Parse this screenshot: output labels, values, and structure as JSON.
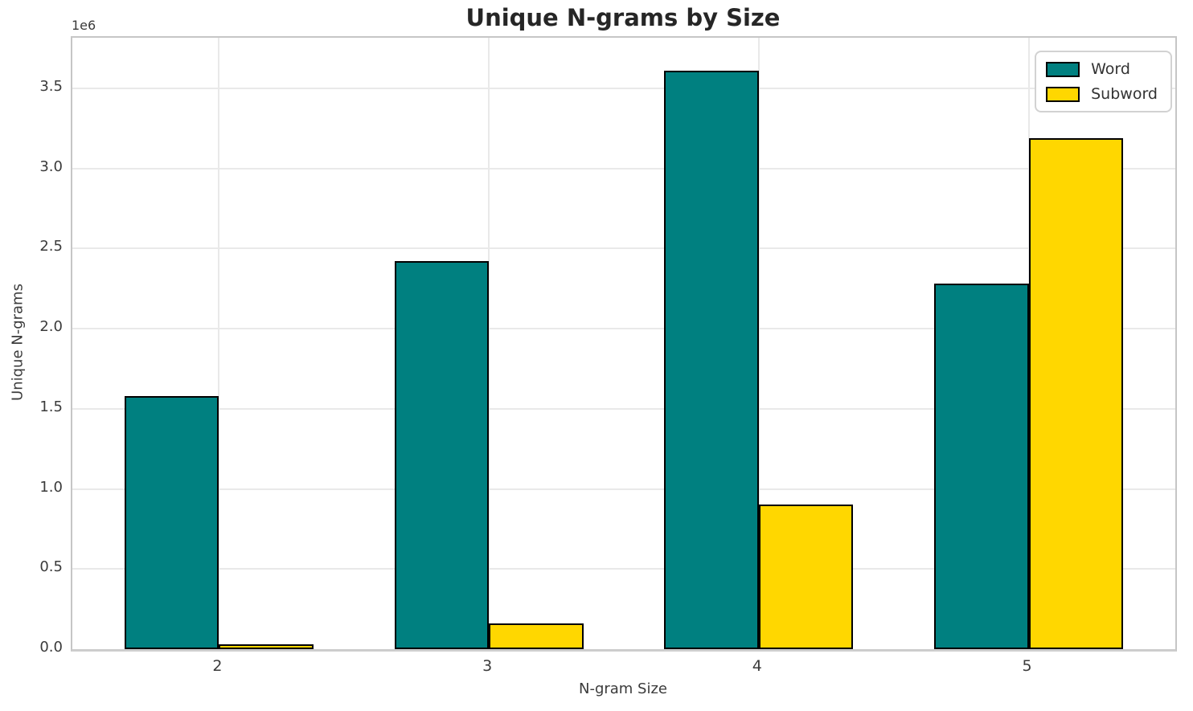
{
  "chart_data": {
    "type": "bar",
    "title": "Unique N-grams by Size",
    "xlabel": "N-gram Size",
    "ylabel": "Unique N-grams",
    "y_offset_text": "1e6",
    "categories": [
      "2",
      "3",
      "4",
      "5"
    ],
    "series": [
      {
        "name": "Word",
        "color": "#008080",
        "values": [
          1580000,
          2420000,
          3610000,
          2280000
        ]
      },
      {
        "name": "Subword",
        "color": "#FFD700",
        "values": [
          30000,
          160000,
          900000,
          3190000
        ]
      }
    ],
    "ylim": [
      0,
      3815000
    ],
    "yticks": [
      0,
      500000,
      1000000,
      1500000,
      2000000,
      2500000,
      3000000,
      3500000
    ],
    "ytick_labels": [
      "0.0",
      "0.5",
      "1.0",
      "1.5",
      "2.0",
      "2.5",
      "3.0",
      "3.5"
    ],
    "grid": true,
    "legend_position": "upper right",
    "bar_edge_color": "#000000",
    "background_color": "#ffffff"
  }
}
